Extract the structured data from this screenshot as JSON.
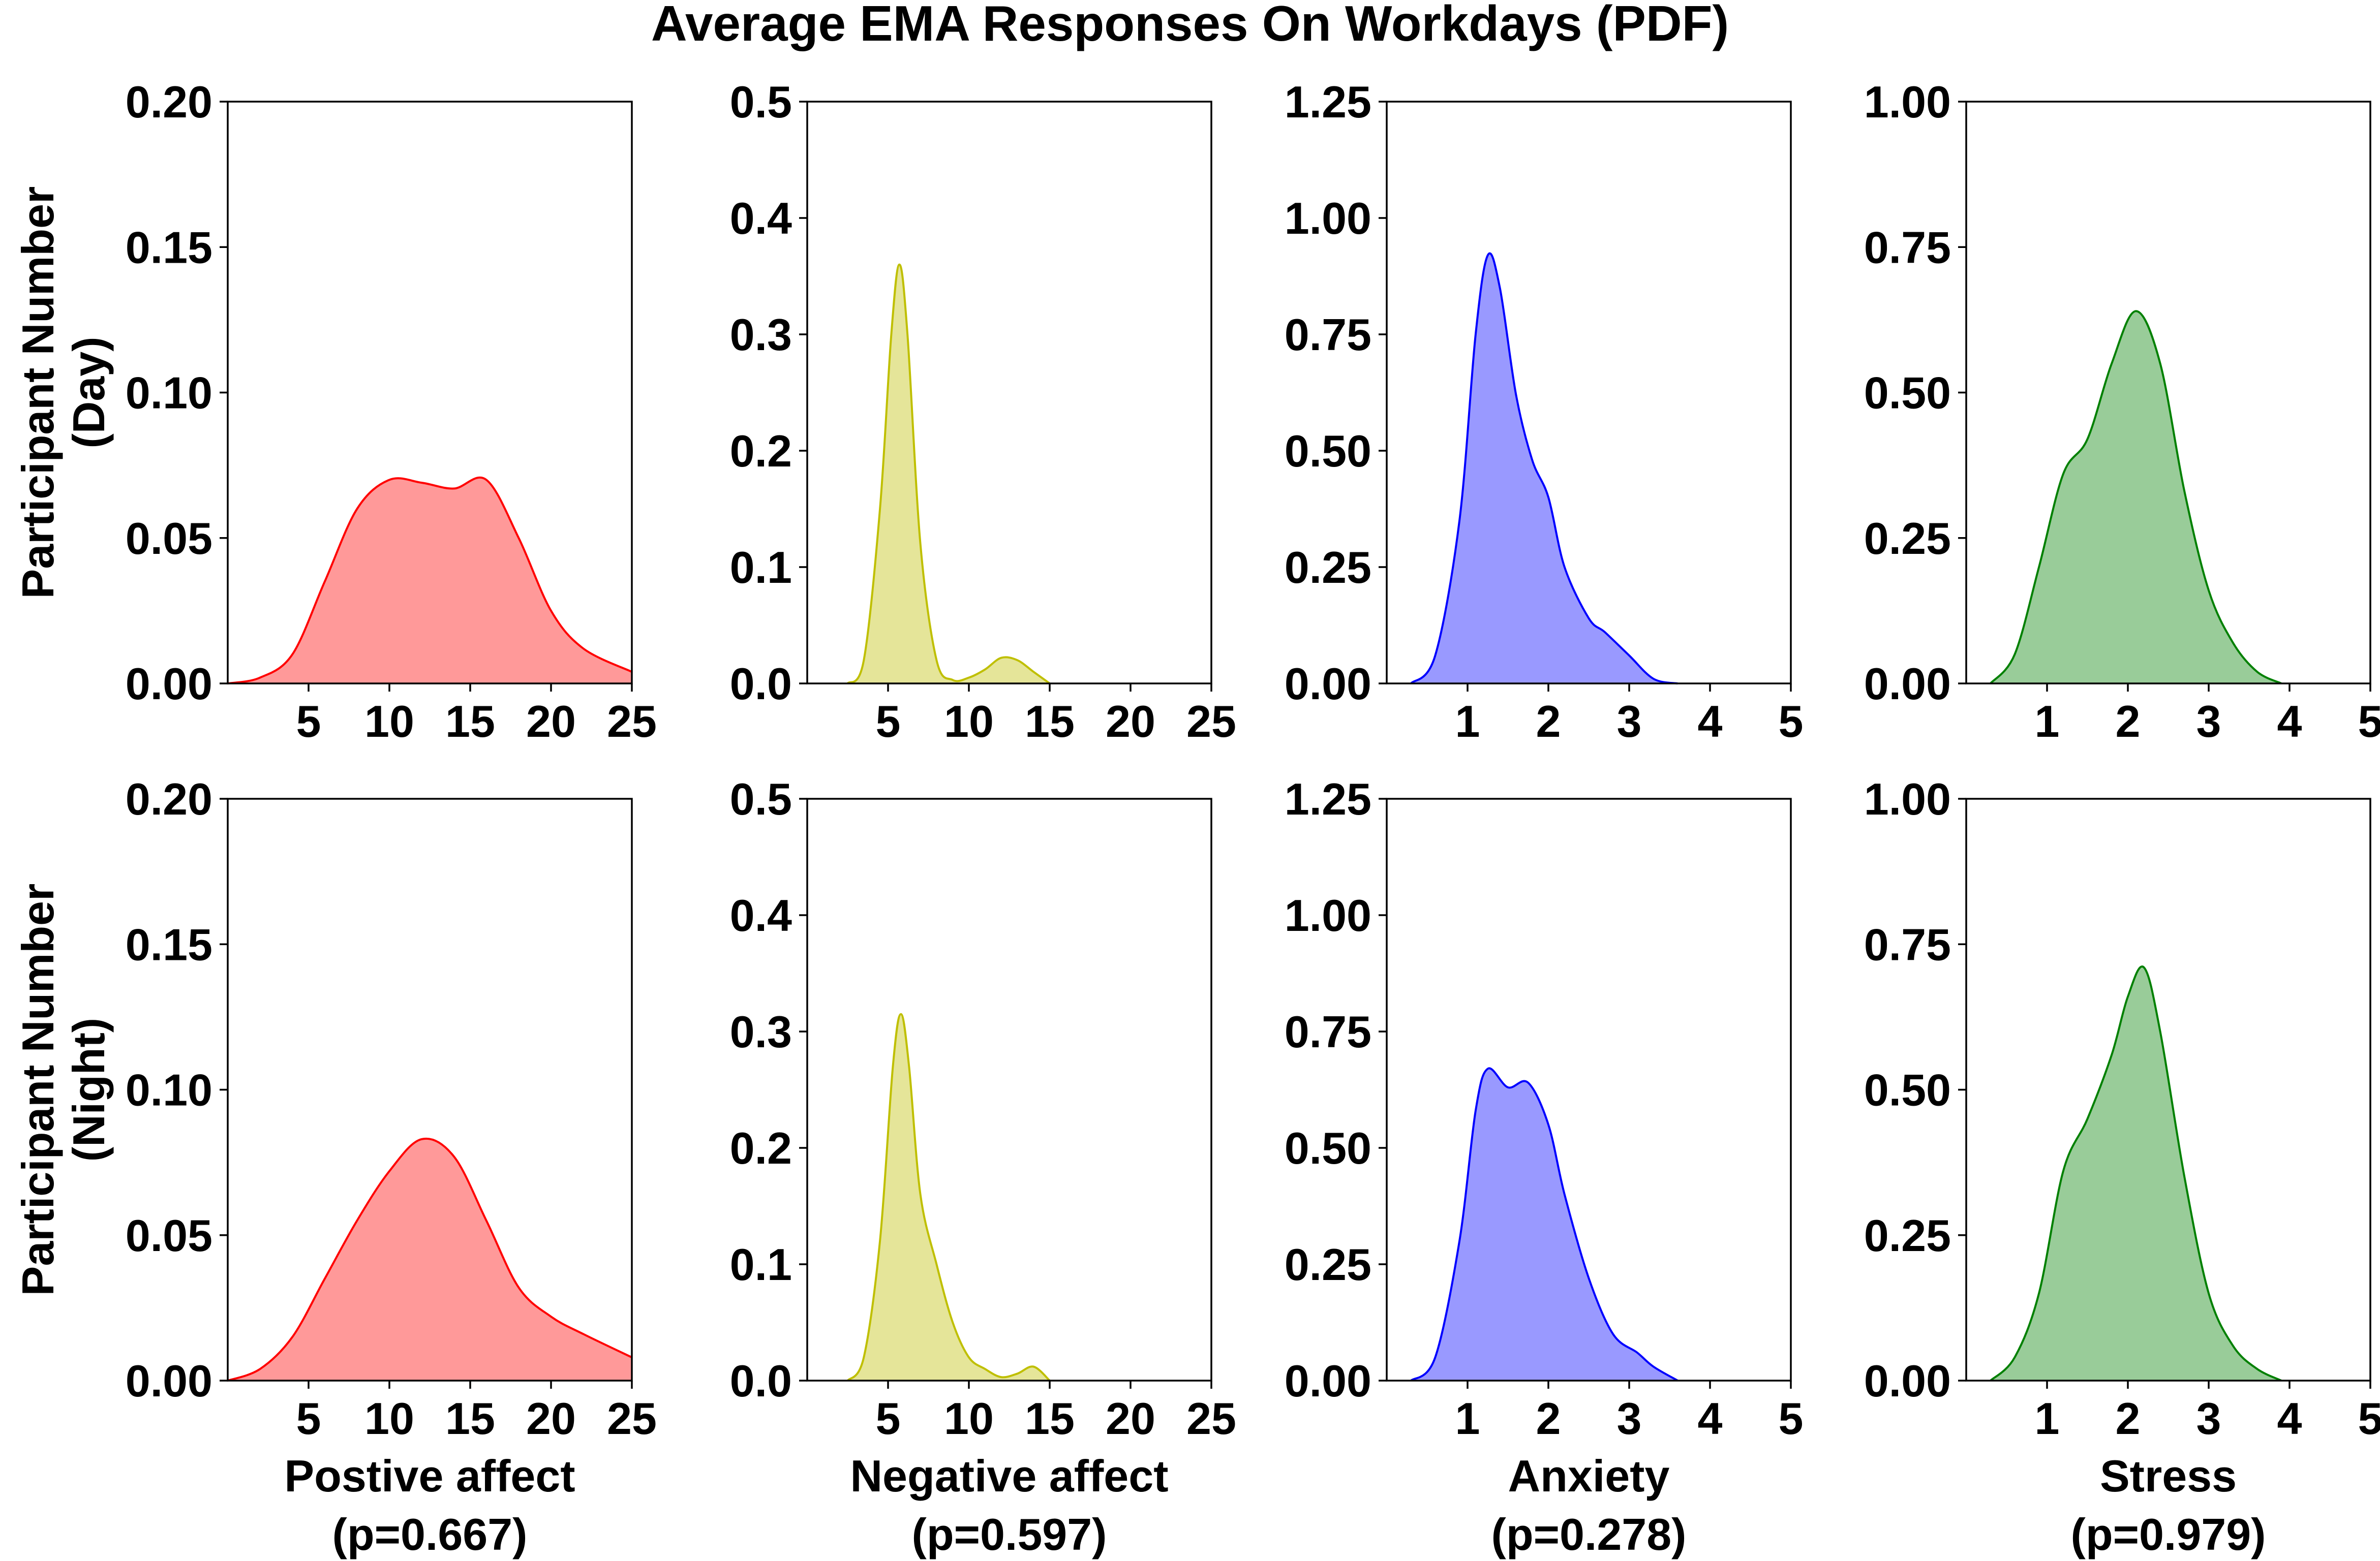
{
  "chart_data": {
    "type": "area",
    "title": "Average EMA Responses On Workdays (PDF)",
    "row_labels": [
      [
        "Participant Number",
        "(Day)"
      ],
      [
        "Participant Number",
        "(Night)"
      ]
    ],
    "columns": [
      {
        "label": "Postive affect",
        "pvalue": "(p=0.667)",
        "color": "#ff0000",
        "fill": "#ff9999",
        "xlim": [
          0,
          25
        ],
        "xticks": [
          "5",
          "10",
          "15",
          "20",
          "25"
        ],
        "xtick_values": [
          5,
          10,
          15,
          20,
          25
        ],
        "ylim": [
          0,
          0.2
        ],
        "yticks": [
          "0.00",
          "0.05",
          "0.10",
          "0.15",
          "0.20"
        ],
        "ytick_values": [
          0,
          0.05,
          0.1,
          0.15,
          0.2
        ]
      },
      {
        "label": "Negative affect",
        "pvalue": "(p=0.597)",
        "color": "#bfbf00",
        "fill": "#e5e599",
        "xlim": [
          0,
          25
        ],
        "xticks": [
          "5",
          "10",
          "15",
          "20",
          "25"
        ],
        "xtick_values": [
          5,
          10,
          15,
          20,
          25
        ],
        "ylim": [
          0,
          0.5
        ],
        "yticks": [
          "0.0",
          "0.1",
          "0.2",
          "0.3",
          "0.4",
          "0.5"
        ],
        "ytick_values": [
          0,
          0.1,
          0.2,
          0.3,
          0.4,
          0.5
        ]
      },
      {
        "label": "Anxiety",
        "pvalue": "(p=0.278)",
        "color": "#0000ff",
        "fill": "#9999ff",
        "xlim": [
          0,
          5
        ],
        "xticks": [
          "1",
          "2",
          "3",
          "4",
          "5"
        ],
        "xtick_values": [
          1,
          2,
          3,
          4,
          5
        ],
        "ylim": [
          0,
          1.25
        ],
        "yticks": [
          "0.00",
          "0.25",
          "0.50",
          "0.75",
          "1.00",
          "1.25"
        ],
        "ytick_values": [
          0,
          0.25,
          0.5,
          0.75,
          1.0,
          1.25
        ]
      },
      {
        "label": "Stress",
        "pvalue": "(p=0.979)",
        "color": "#008000",
        "fill": "#99cc99",
        "xlim": [
          0,
          5
        ],
        "xticks": [
          "1",
          "2",
          "3",
          "4",
          "5"
        ],
        "xtick_values": [
          1,
          2,
          3,
          4,
          5
        ],
        "ylim": [
          0,
          1.0
        ],
        "yticks": [
          "0.00",
          "0.25",
          "0.50",
          "0.75",
          "1.00"
        ],
        "ytick_values": [
          0,
          0.25,
          0.5,
          0.75,
          1.0
        ]
      }
    ],
    "panels": [
      {
        "row": 0,
        "col": 0,
        "x": [
          0,
          2,
          4,
          6,
          8,
          10,
          12,
          14,
          16,
          18,
          20,
          22,
          25
        ],
        "y": [
          0.0,
          0.002,
          0.01,
          0.035,
          0.06,
          0.07,
          0.069,
          0.067,
          0.07,
          0.05,
          0.025,
          0.012,
          0.004
        ]
      },
      {
        "row": 0,
        "col": 1,
        "x": [
          2.5,
          3.5,
          4.5,
          5.2,
          5.7,
          6.2,
          7.0,
          8.0,
          9.0,
          10.0,
          11.0,
          12.0,
          13.0,
          14.0,
          15.0
        ],
        "y": [
          0.0,
          0.02,
          0.15,
          0.3,
          0.36,
          0.3,
          0.12,
          0.02,
          0.003,
          0.005,
          0.012,
          0.022,
          0.02,
          0.01,
          0.0
        ]
      },
      {
        "row": 0,
        "col": 2,
        "x": [
          0.3,
          0.6,
          0.9,
          1.1,
          1.25,
          1.4,
          1.6,
          1.8,
          2.0,
          2.2,
          2.5,
          2.7,
          3.0,
          3.3,
          3.6
        ],
        "y": [
          0.0,
          0.06,
          0.35,
          0.75,
          0.92,
          0.85,
          0.62,
          0.48,
          0.4,
          0.25,
          0.14,
          0.11,
          0.06,
          0.01,
          0.0
        ]
      },
      {
        "row": 0,
        "col": 3,
        "x": [
          0.3,
          0.6,
          0.9,
          1.2,
          1.5,
          1.8,
          2.1,
          2.4,
          2.7,
          3.0,
          3.3,
          3.6,
          3.9
        ],
        "y": [
          0.0,
          0.05,
          0.2,
          0.36,
          0.42,
          0.55,
          0.64,
          0.55,
          0.33,
          0.16,
          0.07,
          0.02,
          0.0
        ]
      },
      {
        "row": 1,
        "col": 0,
        "x": [
          0,
          2,
          4,
          6,
          8,
          10,
          12,
          14,
          16,
          18,
          20,
          22,
          25
        ],
        "y": [
          0.0,
          0.004,
          0.015,
          0.035,
          0.055,
          0.072,
          0.083,
          0.077,
          0.055,
          0.032,
          0.022,
          0.016,
          0.008
        ]
      },
      {
        "row": 1,
        "col": 1,
        "x": [
          2.5,
          3.5,
          4.5,
          5.3,
          5.8,
          6.3,
          7.0,
          8.0,
          9.0,
          10.0,
          11.0,
          12.0,
          13.0,
          14.0,
          15.0
        ],
        "y": [
          0.0,
          0.02,
          0.12,
          0.27,
          0.315,
          0.27,
          0.16,
          0.1,
          0.05,
          0.02,
          0.01,
          0.003,
          0.006,
          0.012,
          0.0
        ]
      },
      {
        "row": 1,
        "col": 2,
        "x": [
          0.3,
          0.6,
          0.9,
          1.1,
          1.25,
          1.5,
          1.75,
          2.0,
          2.2,
          2.5,
          2.8,
          3.1,
          3.3,
          3.6
        ],
        "y": [
          0.0,
          0.05,
          0.3,
          0.58,
          0.67,
          0.63,
          0.64,
          0.55,
          0.4,
          0.22,
          0.1,
          0.06,
          0.03,
          0.0
        ]
      },
      {
        "row": 1,
        "col": 3,
        "x": [
          0.3,
          0.6,
          0.9,
          1.2,
          1.5,
          1.8,
          2.0,
          2.2,
          2.4,
          2.7,
          3.0,
          3.3,
          3.6,
          3.9
        ],
        "y": [
          0.0,
          0.04,
          0.15,
          0.36,
          0.45,
          0.56,
          0.66,
          0.71,
          0.6,
          0.35,
          0.15,
          0.06,
          0.02,
          0.0
        ]
      }
    ]
  }
}
